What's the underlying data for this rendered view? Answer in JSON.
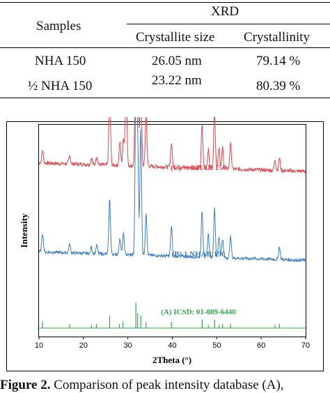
{
  "table": {
    "col_header_samples": "Samples",
    "group_header": "XRD",
    "col_header_size": "Crystallite size",
    "col_header_crystallinity": "Crystallinity",
    "rows": [
      {
        "sample": "NHA 150",
        "size": "26.05 nm",
        "crystallinity": "79.14 %"
      },
      {
        "sample": "½ NHA 150",
        "size": "23.22 nm",
        "crystallinity": "80.39 %"
      }
    ]
  },
  "chart_data": {
    "type": "line",
    "title": "",
    "xlabel": "2Theta (°)",
    "ylabel": "Intensity",
    "xlim": [
      10,
      70
    ],
    "xticks": [
      10,
      20,
      30,
      40,
      50,
      60,
      70
    ],
    "y_ticks_shown": false,
    "grid": false,
    "series": [
      {
        "name": "(C) ½ NHAB 150",
        "color": "#e8434b",
        "offset": 0.7,
        "baseline": 0.12,
        "slope": -0.04,
        "noise": 0.018,
        "peaks": [
          [
            10.8,
            0.06
          ],
          [
            16.9,
            0.04
          ],
          [
            21.8,
            0.03
          ],
          [
            23.0,
            0.04
          ],
          [
            25.9,
            0.38
          ],
          [
            28.2,
            0.11
          ],
          [
            29.0,
            0.13
          ],
          [
            29.6,
            0.44
          ],
          [
            31.8,
            0.72
          ],
          [
            32.2,
            0.62
          ],
          [
            32.9,
            0.5
          ],
          [
            34.1,
            0.25
          ],
          [
            39.8,
            0.11
          ],
          [
            46.7,
            0.2
          ],
          [
            48.1,
            0.09
          ],
          [
            49.5,
            0.27
          ],
          [
            50.5,
            0.1
          ],
          [
            51.3,
            0.1
          ],
          [
            53.1,
            0.12
          ],
          [
            63.1,
            0.05
          ],
          [
            64.1,
            0.06
          ]
        ]
      },
      {
        "name": "(B) 1 NHAB 150",
        "color": "#3d7ec9",
        "offset": 0.3,
        "baseline": 0.1,
        "slope": -0.04,
        "noise": 0.015,
        "peaks": [
          [
            10.8,
            0.09
          ],
          [
            16.9,
            0.04
          ],
          [
            21.8,
            0.03
          ],
          [
            23.0,
            0.04
          ],
          [
            25.9,
            0.26
          ],
          [
            28.2,
            0.08
          ],
          [
            29.0,
            0.1
          ],
          [
            31.8,
            0.79
          ],
          [
            32.2,
            0.55
          ],
          [
            32.9,
            0.6
          ],
          [
            34.1,
            0.2
          ],
          [
            39.8,
            0.14
          ],
          [
            46.7,
            0.22
          ],
          [
            48.1,
            0.11
          ],
          [
            49.5,
            0.23
          ],
          [
            50.5,
            0.1
          ],
          [
            51.3,
            0.09
          ],
          [
            53.1,
            0.1
          ],
          [
            64.1,
            0.06
          ]
        ]
      },
      {
        "name": "(A) ICSD: 01-089-6440",
        "color": "#2ea84c",
        "offset": 0.04,
        "type": "stick",
        "sticks": [
          [
            10.8,
            0.03
          ],
          [
            16.9,
            0.02
          ],
          [
            21.8,
            0.015
          ],
          [
            22.9,
            0.02
          ],
          [
            25.9,
            0.06
          ],
          [
            28.1,
            0.02
          ],
          [
            28.9,
            0.03
          ],
          [
            31.8,
            0.12
          ],
          [
            32.2,
            0.07
          ],
          [
            32.9,
            0.06
          ],
          [
            34.1,
            0.03
          ],
          [
            39.8,
            0.03
          ],
          [
            46.7,
            0.04
          ],
          [
            48.1,
            0.015
          ],
          [
            49.5,
            0.04
          ],
          [
            50.5,
            0.015
          ],
          [
            51.3,
            0.02
          ],
          [
            53.1,
            0.02
          ],
          [
            63.1,
            0.015
          ],
          [
            64.1,
            0.02
          ]
        ]
      }
    ]
  },
  "caption": {
    "prefix": "Figure 2.",
    "text": " Comparison of peak intensity database (A),"
  }
}
